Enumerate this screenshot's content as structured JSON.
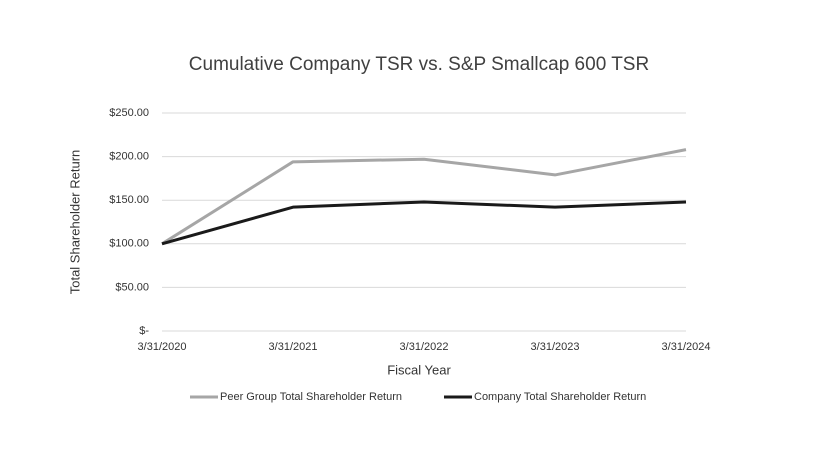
{
  "chart_data": {
    "type": "line",
    "title": "Cumulative Company TSR vs. S&P Smallcap 600 TSR",
    "x_label": "Fiscal Year",
    "y_label": "Total Shareholder  Return",
    "categories": [
      "3/31/2020",
      "3/31/2021",
      "3/31/2022",
      "3/31/2023",
      "3/31/2024"
    ],
    "series": [
      {
        "name": "Peer Group Total Shareholder Return",
        "color": "#a6a6a6",
        "values": [
          100,
          194,
          197,
          179,
          208
        ]
      },
      {
        "name": "Company Total Shareholder Return",
        "color": "#1a1a1a",
        "values": [
          100,
          142,
          148,
          142,
          148
        ]
      }
    ],
    "ylim": [
      0,
      250
    ],
    "yticks": [
      {
        "value": 0,
        "label": "$-"
      },
      {
        "value": 50,
        "label": "$50.00"
      },
      {
        "value": 100,
        "label": "$100.00"
      },
      {
        "value": 150,
        "label": "$150.00"
      },
      {
        "value": 200,
        "label": "$200.00"
      },
      {
        "value": 250,
        "label": "$250.00"
      }
    ],
    "grid": true,
    "legend": "bottom"
  }
}
